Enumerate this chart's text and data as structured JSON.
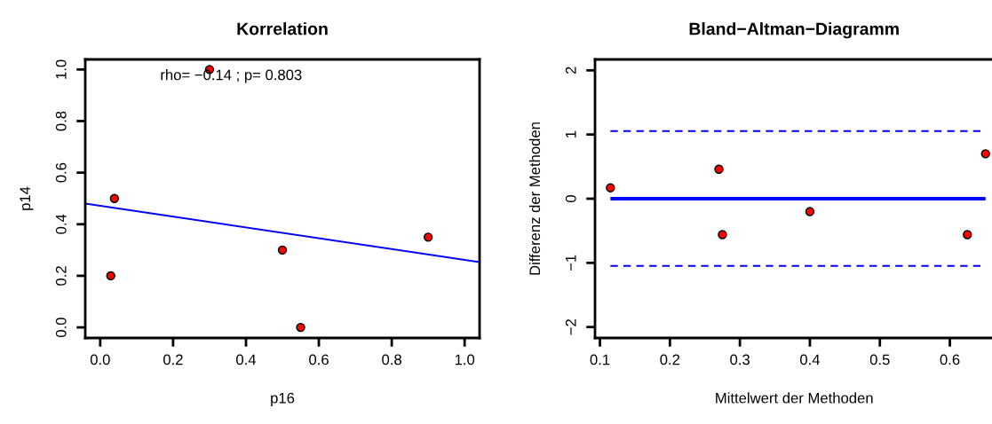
{
  "chart_data": [
    {
      "type": "scatter",
      "title": "Korrelation",
      "xlabel": "p16",
      "ylabel": "p14",
      "xlim": [
        -0.041,
        1.041
      ],
      "ylim": [
        -0.041,
        1.039
      ],
      "xticks": [
        {
          "value": 0,
          "label": "0.0"
        },
        0.2,
        0.4,
        0.6,
        0.8,
        {
          "value": 1,
          "label": "1.0"
        }
      ],
      "yticks": [
        {
          "value": 0,
          "label": "0.0"
        },
        0.2,
        0.4,
        0.6,
        0.8,
        {
          "value": 1,
          "label": "1.0"
        }
      ],
      "grid": false,
      "legend": false,
      "annotations": [
        "rho= −0.14 ; p= 0.803"
      ],
      "series": [
        {
          "marker": "circle",
          "color": "#ff0000",
          "x": [
            0.029,
            0.039,
            0.3,
            0.5,
            0.55,
            0.9
          ],
          "values": [
            0.2,
            0.5,
            1.0,
            0.3,
            0.0,
            0.35
          ]
        },
        {
          "type": "line",
          "color": "#0000ff",
          "x": [
            -0.041,
            1.041
          ],
          "values": [
            0.48,
            0.253
          ]
        }
      ]
    },
    {
      "type": "scatter",
      "title": "Bland−Altman−Diagramm",
      "xlabel": "Mittelwert der Methoden",
      "ylabel": "Differenz der Methoden",
      "xlim": [
        0.093,
        0.662
      ],
      "ylim": [
        -2.17,
        2.17
      ],
      "xticks": [
        0.1,
        0.2,
        0.3,
        0.4,
        0.5,
        0.6
      ],
      "yticks": [
        -2,
        -1,
        0,
        1,
        2
      ],
      "grid": false,
      "legend": false,
      "series": [
        {
          "marker": "circle",
          "color": "#ff0000",
          "x": [
            0.115,
            0.27,
            0.275,
            0.4,
            0.625,
            0.651
          ],
          "values": [
            0.17,
            0.46,
            -0.56,
            -0.2,
            -0.56,
            0.7
          ]
        }
      ],
      "ref_lines": [
        {
          "axis": "y",
          "value": 0,
          "color": "#0000ff",
          "line_style": "solid"
        },
        {
          "axis": "y",
          "value": 1.055,
          "color": "#0000ff",
          "line_style": "dashed"
        },
        {
          "axis": "y",
          "value": -1.046,
          "color": "#0000ff",
          "line_style": "dashed"
        }
      ]
    }
  ]
}
